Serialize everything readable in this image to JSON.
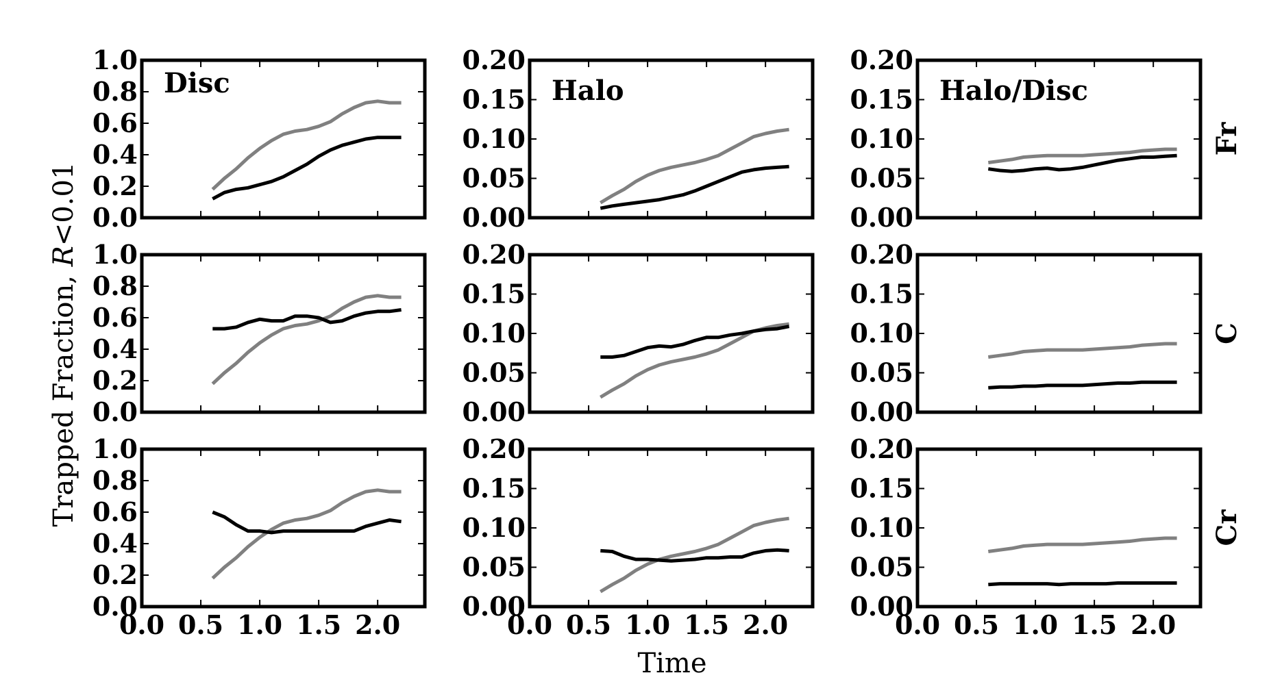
{
  "figure": {
    "xlabel": "Time",
    "ylabel_prefix": "Trapped Fraction, ",
    "ylabel_var": "R",
    "ylabel_suffix": "<0.01"
  },
  "chart_data": [
    {
      "type": "line",
      "row": 0,
      "col": 0,
      "title": "Disc",
      "row_label": "",
      "xlim": [
        0,
        2.4
      ],
      "ylim": [
        0,
        1.0
      ],
      "xticks": [
        "0.0",
        "0.5",
        "1.0",
        "1.5",
        "2.0"
      ],
      "yticks": [
        "0.0",
        "0.2",
        "0.4",
        "0.6",
        "0.8",
        "1.0"
      ],
      "x": [
        0.6,
        0.7,
        0.8,
        0.9,
        1.0,
        1.1,
        1.2,
        1.3,
        1.4,
        1.5,
        1.6,
        1.7,
        1.8,
        1.9,
        2.0,
        2.1,
        2.2
      ],
      "series": [
        {
          "color": "#808080",
          "values": [
            0.18,
            0.25,
            0.31,
            0.38,
            0.44,
            0.49,
            0.53,
            0.55,
            0.56,
            0.58,
            0.61,
            0.66,
            0.7,
            0.73,
            0.74,
            0.73,
            0.73
          ]
        },
        {
          "color": "#000000",
          "values": [
            0.12,
            0.16,
            0.18,
            0.19,
            0.21,
            0.23,
            0.26,
            0.3,
            0.34,
            0.39,
            0.43,
            0.46,
            0.48,
            0.5,
            0.51,
            0.51,
            0.51
          ]
        }
      ]
    },
    {
      "type": "line",
      "row": 0,
      "col": 1,
      "title": "Halo",
      "row_label": "",
      "xlim": [
        0,
        2.4
      ],
      "ylim": [
        0,
        0.2
      ],
      "xticks": [
        "0.0",
        "0.5",
        "1.0",
        "1.5",
        "2.0"
      ],
      "yticks": [
        "0.00",
        "0.05",
        "0.10",
        "0.15",
        "0.20"
      ],
      "x": [
        0.6,
        0.7,
        0.8,
        0.9,
        1.0,
        1.1,
        1.2,
        1.3,
        1.4,
        1.5,
        1.6,
        1.7,
        1.8,
        1.9,
        2.0,
        2.1,
        2.2
      ],
      "series": [
        {
          "color": "#808080",
          "values": [
            0.019,
            0.028,
            0.036,
            0.046,
            0.054,
            0.06,
            0.064,
            0.067,
            0.07,
            0.074,
            0.079,
            0.087,
            0.095,
            0.103,
            0.107,
            0.11,
            0.112
          ]
        },
        {
          "color": "#000000",
          "values": [
            0.012,
            0.015,
            0.017,
            0.019,
            0.021,
            0.023,
            0.026,
            0.029,
            0.034,
            0.04,
            0.046,
            0.052,
            0.058,
            0.061,
            0.063,
            0.064,
            0.065
          ]
        }
      ]
    },
    {
      "type": "line",
      "row": 0,
      "col": 2,
      "title": "Halo/Disc",
      "row_label": "Fr",
      "xlim": [
        0,
        2.4
      ],
      "ylim": [
        0,
        0.2
      ],
      "xticks": [
        "0.0",
        "0.5",
        "1.0",
        "1.5",
        "2.0"
      ],
      "yticks": [
        "0.00",
        "0.05",
        "0.10",
        "0.15",
        "0.20"
      ],
      "x": [
        0.6,
        0.7,
        0.8,
        0.9,
        1.0,
        1.1,
        1.2,
        1.3,
        1.4,
        1.5,
        1.6,
        1.7,
        1.8,
        1.9,
        2.0,
        2.1,
        2.2
      ],
      "series": [
        {
          "color": "#808080",
          "values": [
            0.07,
            0.072,
            0.074,
            0.077,
            0.078,
            0.079,
            0.079,
            0.079,
            0.079,
            0.08,
            0.081,
            0.082,
            0.083,
            0.085,
            0.086,
            0.087,
            0.087
          ]
        },
        {
          "color": "#000000",
          "values": [
            0.062,
            0.06,
            0.059,
            0.06,
            0.062,
            0.063,
            0.061,
            0.062,
            0.064,
            0.067,
            0.07,
            0.073,
            0.075,
            0.077,
            0.077,
            0.078,
            0.079
          ]
        }
      ]
    },
    {
      "type": "line",
      "row": 1,
      "col": 0,
      "title": "",
      "row_label": "",
      "xlim": [
        0,
        2.4
      ],
      "ylim": [
        0,
        1.0
      ],
      "xticks": [
        "0.0",
        "0.5",
        "1.0",
        "1.5",
        "2.0"
      ],
      "yticks": [
        "0.0",
        "0.2",
        "0.4",
        "0.6",
        "0.8",
        "1.0"
      ],
      "x": [
        0.6,
        0.7,
        0.8,
        0.9,
        1.0,
        1.1,
        1.2,
        1.3,
        1.4,
        1.5,
        1.6,
        1.7,
        1.8,
        1.9,
        2.0,
        2.1,
        2.2
      ],
      "series": [
        {
          "color": "#808080",
          "values": [
            0.18,
            0.25,
            0.31,
            0.38,
            0.44,
            0.49,
            0.53,
            0.55,
            0.56,
            0.58,
            0.61,
            0.66,
            0.7,
            0.73,
            0.74,
            0.73,
            0.73
          ]
        },
        {
          "color": "#000000",
          "values": [
            0.53,
            0.53,
            0.54,
            0.57,
            0.59,
            0.58,
            0.58,
            0.61,
            0.61,
            0.6,
            0.57,
            0.58,
            0.61,
            0.63,
            0.64,
            0.64,
            0.65
          ]
        }
      ]
    },
    {
      "type": "line",
      "row": 1,
      "col": 1,
      "title": "",
      "row_label": "",
      "xlim": [
        0,
        2.4
      ],
      "ylim": [
        0,
        0.2
      ],
      "xticks": [
        "0.0",
        "0.5",
        "1.0",
        "1.5",
        "2.0"
      ],
      "yticks": [
        "0.00",
        "0.05",
        "0.10",
        "0.15",
        "0.20"
      ],
      "x": [
        0.6,
        0.7,
        0.8,
        0.9,
        1.0,
        1.1,
        1.2,
        1.3,
        1.4,
        1.5,
        1.6,
        1.7,
        1.8,
        1.9,
        2.0,
        2.1,
        2.2
      ],
      "series": [
        {
          "color": "#808080",
          "values": [
            0.019,
            0.028,
            0.036,
            0.046,
            0.054,
            0.06,
            0.064,
            0.067,
            0.07,
            0.074,
            0.079,
            0.087,
            0.095,
            0.103,
            0.107,
            0.11,
            0.112
          ]
        },
        {
          "color": "#000000",
          "values": [
            0.07,
            0.07,
            0.072,
            0.077,
            0.082,
            0.084,
            0.083,
            0.086,
            0.091,
            0.095,
            0.095,
            0.098,
            0.1,
            0.103,
            0.105,
            0.106,
            0.109
          ]
        }
      ]
    },
    {
      "type": "line",
      "row": 1,
      "col": 2,
      "title": "",
      "row_label": "C",
      "xlim": [
        0,
        2.4
      ],
      "ylim": [
        0,
        0.2
      ],
      "xticks": [
        "0.0",
        "0.5",
        "1.0",
        "1.5",
        "2.0"
      ],
      "yticks": [
        "0.00",
        "0.05",
        "0.10",
        "0.15",
        "0.20"
      ],
      "x": [
        0.6,
        0.7,
        0.8,
        0.9,
        1.0,
        1.1,
        1.2,
        1.3,
        1.4,
        1.5,
        1.6,
        1.7,
        1.8,
        1.9,
        2.0,
        2.1,
        2.2
      ],
      "series": [
        {
          "color": "#808080",
          "values": [
            0.07,
            0.072,
            0.074,
            0.077,
            0.078,
            0.079,
            0.079,
            0.079,
            0.079,
            0.08,
            0.081,
            0.082,
            0.083,
            0.085,
            0.086,
            0.087,
            0.087
          ]
        },
        {
          "color": "#000000",
          "values": [
            0.031,
            0.032,
            0.032,
            0.033,
            0.033,
            0.034,
            0.034,
            0.034,
            0.034,
            0.035,
            0.036,
            0.037,
            0.037,
            0.038,
            0.038,
            0.038,
            0.038
          ]
        }
      ]
    },
    {
      "type": "line",
      "row": 2,
      "col": 0,
      "title": "",
      "row_label": "",
      "xlim": [
        0,
        2.4
      ],
      "ylim": [
        0,
        1.0
      ],
      "xticks": [
        "0.0",
        "0.5",
        "1.0",
        "1.5",
        "2.0"
      ],
      "yticks": [
        "0.0",
        "0.2",
        "0.4",
        "0.6",
        "0.8",
        "1.0"
      ],
      "x": [
        0.6,
        0.7,
        0.8,
        0.9,
        1.0,
        1.1,
        1.2,
        1.3,
        1.4,
        1.5,
        1.6,
        1.7,
        1.8,
        1.9,
        2.0,
        2.1,
        2.2
      ],
      "series": [
        {
          "color": "#808080",
          "values": [
            0.18,
            0.25,
            0.31,
            0.38,
            0.44,
            0.49,
            0.53,
            0.55,
            0.56,
            0.58,
            0.61,
            0.66,
            0.7,
            0.73,
            0.74,
            0.73,
            0.73
          ]
        },
        {
          "color": "#000000",
          "values": [
            0.6,
            0.57,
            0.52,
            0.48,
            0.48,
            0.47,
            0.48,
            0.48,
            0.48,
            0.48,
            0.48,
            0.48,
            0.48,
            0.51,
            0.53,
            0.55,
            0.54
          ]
        }
      ]
    },
    {
      "type": "line",
      "row": 2,
      "col": 1,
      "title": "",
      "row_label": "",
      "xlim": [
        0,
        2.4
      ],
      "ylim": [
        0,
        0.2
      ],
      "xticks": [
        "0.0",
        "0.5",
        "1.0",
        "1.5",
        "2.0"
      ],
      "yticks": [
        "0.00",
        "0.05",
        "0.10",
        "0.15",
        "0.20"
      ],
      "x": [
        0.6,
        0.7,
        0.8,
        0.9,
        1.0,
        1.1,
        1.2,
        1.3,
        1.4,
        1.5,
        1.6,
        1.7,
        1.8,
        1.9,
        2.0,
        2.1,
        2.2
      ],
      "series": [
        {
          "color": "#808080",
          "values": [
            0.019,
            0.028,
            0.036,
            0.046,
            0.054,
            0.06,
            0.064,
            0.067,
            0.07,
            0.074,
            0.079,
            0.087,
            0.095,
            0.103,
            0.107,
            0.11,
            0.112
          ]
        },
        {
          "color": "#000000",
          "values": [
            0.071,
            0.07,
            0.064,
            0.06,
            0.06,
            0.059,
            0.058,
            0.059,
            0.06,
            0.062,
            0.062,
            0.063,
            0.063,
            0.068,
            0.071,
            0.072,
            0.071
          ]
        }
      ]
    },
    {
      "type": "line",
      "row": 2,
      "col": 2,
      "title": "",
      "row_label": "Cr",
      "xlim": [
        0,
        2.4
      ],
      "ylim": [
        0,
        0.2
      ],
      "xticks": [
        "0.0",
        "0.5",
        "1.0",
        "1.5",
        "2.0"
      ],
      "yticks": [
        "0.00",
        "0.05",
        "0.10",
        "0.15",
        "0.20"
      ],
      "x": [
        0.6,
        0.7,
        0.8,
        0.9,
        1.0,
        1.1,
        1.2,
        1.3,
        1.4,
        1.5,
        1.6,
        1.7,
        1.8,
        1.9,
        2.0,
        2.1,
        2.2
      ],
      "series": [
        {
          "color": "#808080",
          "values": [
            0.07,
            0.072,
            0.074,
            0.077,
            0.078,
            0.079,
            0.079,
            0.079,
            0.079,
            0.08,
            0.081,
            0.082,
            0.083,
            0.085,
            0.086,
            0.087,
            0.087
          ]
        },
        {
          "color": "#000000",
          "values": [
            0.028,
            0.029,
            0.029,
            0.029,
            0.029,
            0.029,
            0.028,
            0.029,
            0.029,
            0.029,
            0.029,
            0.03,
            0.03,
            0.03,
            0.03,
            0.03,
            0.03
          ]
        }
      ]
    }
  ]
}
